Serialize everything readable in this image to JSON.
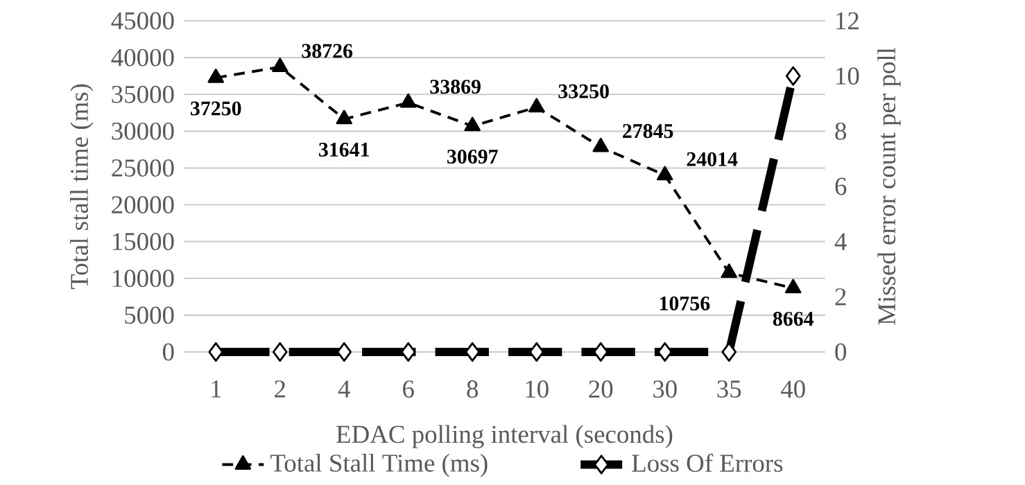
{
  "chart_data": {
    "type": "line",
    "xlabel": "EDAC polling interval (seconds)",
    "ylabel": "Total stall time (ms)",
    "y2label": "Missed error count per poll",
    "categories": [
      "1",
      "2",
      "4",
      "6",
      "8",
      "10",
      "20",
      "30",
      "35",
      "40"
    ],
    "series": [
      {
        "name": "Total Stall Time (ms)",
        "color": "#000000",
        "marker": "triangle",
        "line_style": "dashed",
        "data_labels": true,
        "values": [
          37250,
          38726,
          31641,
          33869,
          30697,
          33250,
          27845,
          24014,
          10756,
          8664
        ]
      },
      {
        "name": "Loss Of Errors",
        "color": "#000000",
        "marker": "diamond",
        "line_style": "dashed",
        "axis": "y2",
        "values": [
          0,
          0,
          0,
          0,
          0,
          0,
          0,
          0,
          0,
          10
        ]
      }
    ],
    "ylim": [
      0,
      45000
    ],
    "yticks": [
      0,
      5000,
      10000,
      15000,
      20000,
      25000,
      30000,
      35000,
      40000,
      45000
    ],
    "y2lim": [
      0,
      12
    ],
    "y2ticks": [
      0,
      2,
      4,
      6,
      8,
      10,
      12
    ],
    "grid": "y",
    "legend": "bottom"
  }
}
